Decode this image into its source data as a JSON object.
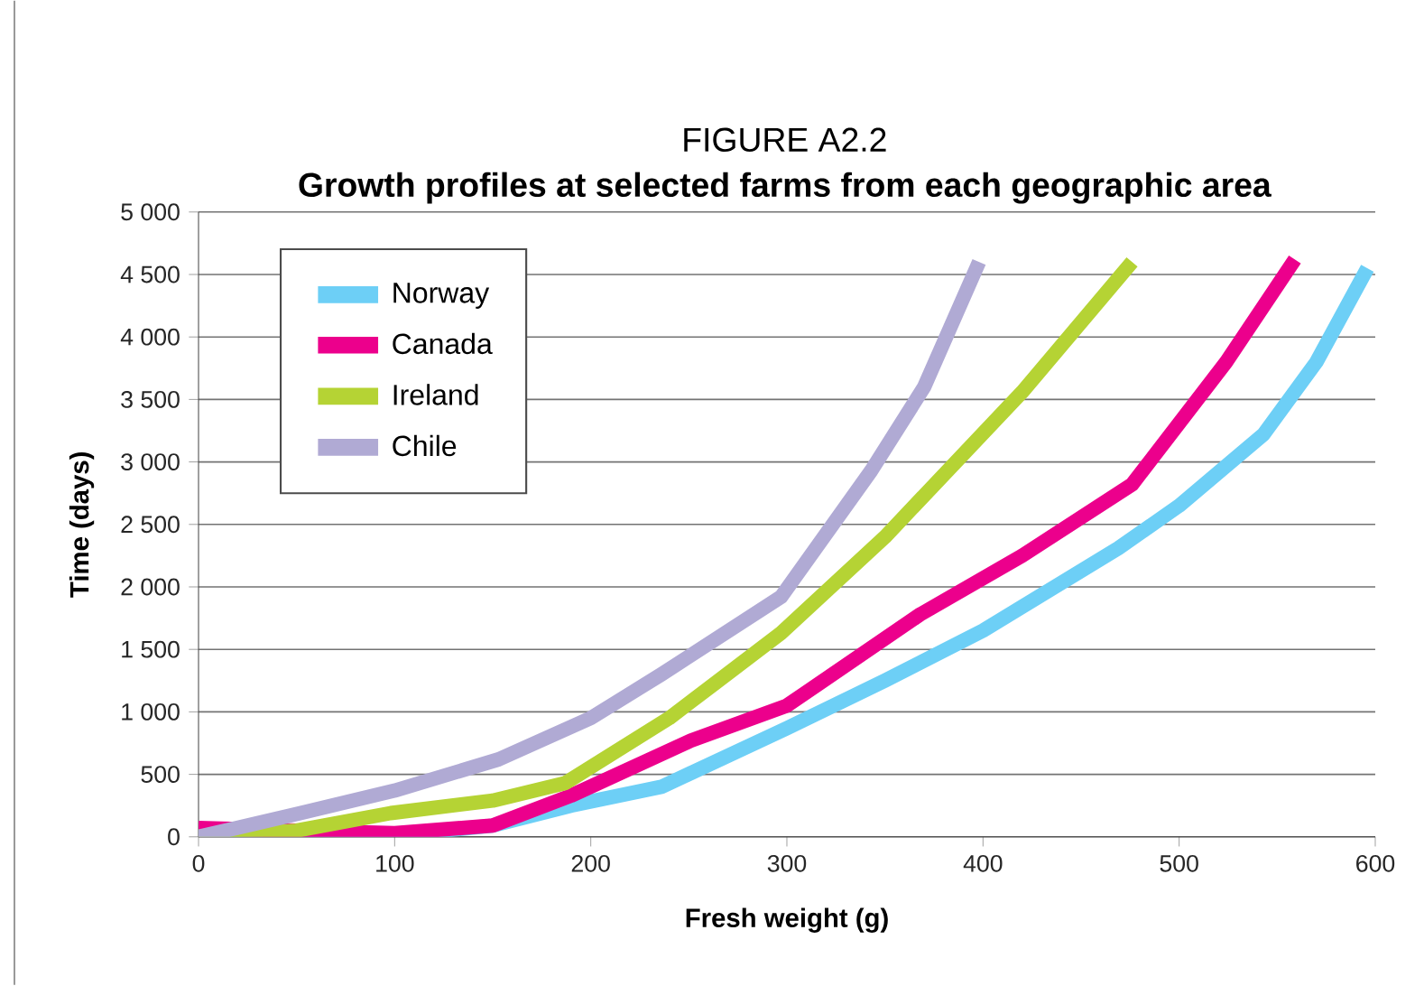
{
  "chart_data": {
    "type": "line",
    "title": "FIGURE A2.2",
    "subtitle": "Growth profiles at selected farms from each geographic area",
    "xlabel": "Fresh weight (g)",
    "ylabel": "Time (days)",
    "xlim": [
      0,
      600
    ],
    "ylim": [
      0,
      5000
    ],
    "xticks": [
      0,
      100,
      200,
      300,
      400,
      500,
      600
    ],
    "yticks": [
      0,
      500,
      {
        "value": 1000,
        "label": "1 000"
      },
      {
        "value": 1500,
        "label": "1 500"
      },
      {
        "value": 2000,
        "label": "2 000"
      },
      {
        "value": 2500,
        "label": "2 500"
      },
      {
        "value": 3000,
        "label": "3 000"
      },
      {
        "value": 3500,
        "label": "3 500"
      },
      {
        "value": 4000,
        "label": "4 000"
      },
      {
        "value": 4500,
        "label": "4 500"
      },
      {
        "value": 5000,
        "label": "5 000"
      }
    ],
    "grid": "y",
    "legend": "top left",
    "marker": "none",
    "line_style": "solid",
    "series": [
      {
        "name": "Norway",
        "color": "#6dcff6",
        "x": [
          0,
          100,
          150,
          190,
          236,
          300,
          350,
          400,
          469,
          500,
          543,
          570,
          596
        ],
        "values": [
          0,
          10,
          90,
          250,
          400,
          870,
          1250,
          1650,
          2310,
          2650,
          3220,
          3800,
          4550
        ]
      },
      {
        "name": "Canada",
        "color": "#ec008c",
        "x": [
          0,
          100,
          150,
          190,
          251,
          300,
          368,
          420,
          476,
          524,
          559
        ],
        "values": [
          70,
          30,
          90,
          330,
          770,
          1050,
          1780,
          2250,
          2820,
          3800,
          4620
        ]
      },
      {
        "name": "Ireland",
        "color": "#b5d334",
        "x": [
          0,
          50,
          98,
          150,
          187,
          240,
          297,
          350,
          420,
          476
        ],
        "values": [
          0,
          50,
          190,
          290,
          430,
          950,
          1630,
          2400,
          3560,
          4600
        ]
      },
      {
        "name": "Chile",
        "color": "#b0aad4",
        "x": [
          0,
          52,
          100,
          153,
          200,
          236,
          297,
          343,
          370,
          398
        ],
        "values": [
          0,
          190,
          370,
          620,
          950,
          1300,
          1920,
          2930,
          3600,
          4600
        ]
      }
    ]
  }
}
